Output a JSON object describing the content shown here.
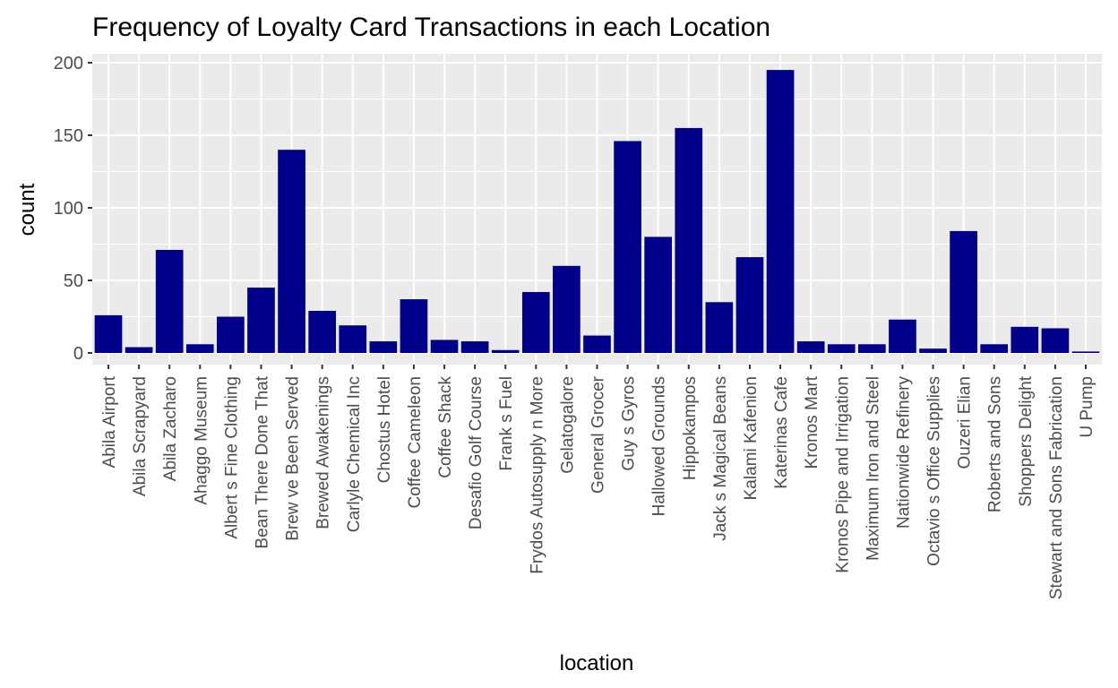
{
  "chart_data": {
    "type": "bar",
    "title": "Frequency of Loyalty Card Transactions in each Location",
    "xlabel": "location",
    "ylabel": "count",
    "ylim": [
      0,
      205
    ],
    "yticks": [
      0,
      50,
      100,
      150,
      200
    ],
    "grid": true,
    "bar_color": "#00008B",
    "panel_color": "#EBEBEB",
    "gridline_color": "#FFFFFF",
    "categories": [
      "Abila Airport",
      "Abila Scrapyard",
      "Abila Zacharo",
      "Ahaggo Museum",
      "Albert s Fine Clothing",
      "Bean There Done That",
      "Brew ve Been Served",
      "Brewed Awakenings",
      "Carlyle Chemical Inc",
      "Chostus Hotel",
      "Coffee Cameleon",
      "Coffee Shack",
      "Desafio Golf Course",
      "Frank s Fuel",
      "Frydos Autosupply n  More",
      "Gelatogalore",
      "General Grocer",
      "Guy s Gyros",
      "Hallowed Grounds",
      "Hippokampos",
      "Jack s Magical Beans",
      "Kalami Kafenion",
      "Katerinas Cafe",
      "Kronos Mart",
      "Kronos Pipe and Irrigation",
      "Maximum Iron and Steel",
      "Nationwide Refinery",
      "Octavio s Office Supplies",
      "Ouzeri Elian",
      "Roberts and Sons",
      "Shoppers  Delight",
      "Stewart and Sons Fabrication",
      "U Pump"
    ],
    "values": [
      26,
      4,
      71,
      6,
      25,
      45,
      140,
      29,
      19,
      8,
      37,
      9,
      8,
      2,
      42,
      60,
      12,
      146,
      80,
      155,
      35,
      66,
      195,
      8,
      6,
      6,
      23,
      3,
      84,
      6,
      18,
      17,
      1
    ]
  }
}
